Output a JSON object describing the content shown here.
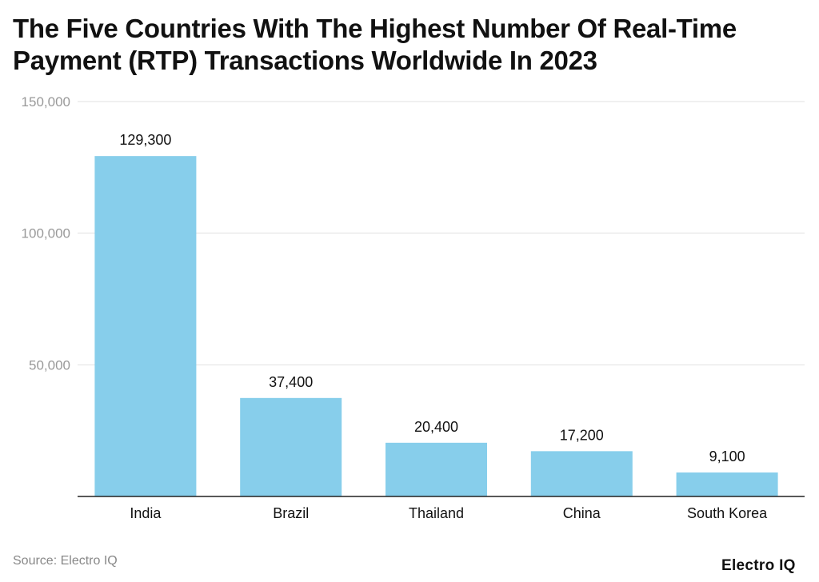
{
  "chart_data": {
    "type": "bar",
    "title": "The Five Countries With The Highest Number Of Real-Time Payment (RTP) Transactions Worldwide In 2023",
    "categories": [
      "India",
      "Brazil",
      "Thailand",
      "China",
      "South Korea"
    ],
    "values": [
      129300,
      37400,
      20400,
      17200,
      9100
    ],
    "value_labels": [
      "129,300",
      "37,400",
      "20,400",
      "17,200",
      "9,100"
    ],
    "xlabel": "",
    "ylabel": "",
    "ylim": [
      0,
      150000
    ],
    "yticks": [
      50000,
      100000,
      150000
    ],
    "ytick_labels": [
      "50,000",
      "100,000",
      "150,000"
    ],
    "grid": true,
    "legend": "none",
    "bar_color": "#87CEEB"
  },
  "source": "Source: Electro IQ",
  "logo": "Electro IQ"
}
